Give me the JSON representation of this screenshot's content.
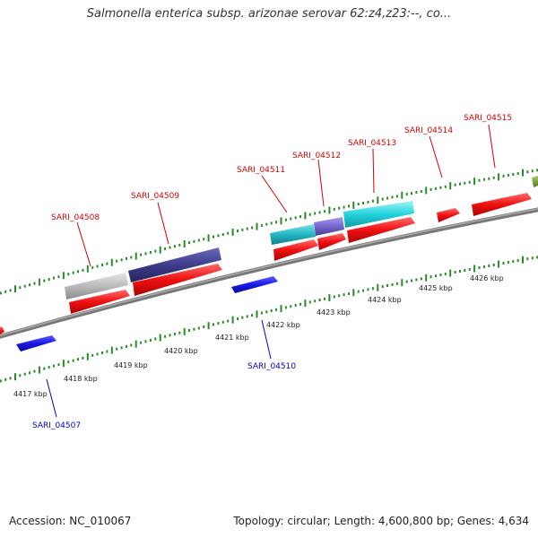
{
  "title": "Salmonella enterica subsp. arizonae serovar 62:z4,z23:--, co...",
  "footer": {
    "accession": "Accession: NC_010067",
    "summary": "Topology: circular; Length: 4,600,800 bp; Genes: 4,634"
  },
  "colors": {
    "label_forward": "#d40000",
    "label_reverse": "#0000cc",
    "cds_red": "#ee1111",
    "cds_blue": "#1a1ae6",
    "navy": "#3d3d8c",
    "gray": "#bbbbbb",
    "cyan": "#22d4dd",
    "teal": "#22b8c4",
    "purple": "#7766cc",
    "backbone": "#8a8a8a",
    "ticks": "#2a8a2a"
  },
  "kbp_labels": [
    "4417 kbp",
    "4418 kbp",
    "4419 kbp",
    "4420 kbp",
    "4421 kbp",
    "4422 kbp",
    "4423 kbp",
    "4424 kbp",
    "4425 kbp",
    "4426 kbp"
  ],
  "gene_labels_forward": [
    "SARI_04508",
    "SARI_04509",
    "SARI_04511",
    "SARI_04512",
    "SARI_04513",
    "SARI_04514",
    "SARI_04515"
  ],
  "gene_labels_reverse": [
    "SARI_04507",
    "SARI_04510"
  ]
}
